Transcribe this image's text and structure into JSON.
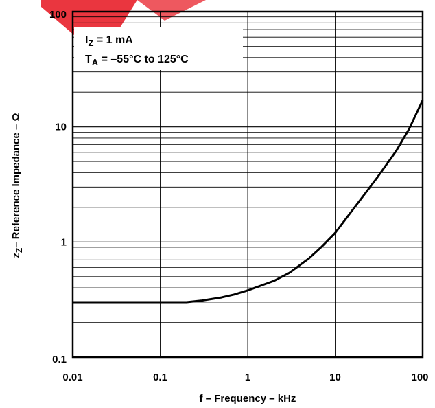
{
  "chart_data": {
    "type": "line",
    "title": "",
    "xlabel": "f – Frequency – kHz",
    "ylabel_main": "z",
    "ylabel_sub": "Z",
    "ylabel_rest": "– Reference Impedance – Ω",
    "x_scale": "log",
    "y_scale": "log",
    "xlim": [
      0.01,
      100
    ],
    "ylim": [
      0.1,
      100
    ],
    "grid": true,
    "x_ticks": [
      0.01,
      0.1,
      1,
      10,
      100
    ],
    "x_tick_labels": [
      "0.01",
      "0.1",
      "1",
      "10",
      "100"
    ],
    "y_ticks": [
      0.1,
      1,
      10,
      100
    ],
    "y_tick_labels": [
      "0.1",
      "1",
      "10",
      "100"
    ],
    "annotation": {
      "line1_main": "I",
      "line1_sub": "Z",
      "line1_rest": " = 1 mA",
      "line2_main": "T",
      "line2_sub": "A",
      "line2_rest": " = –55°C to 125°C"
    },
    "series": [
      {
        "x": [
          0.01,
          0.03,
          0.1,
          0.2,
          0.3,
          0.5,
          0.7,
          1,
          2,
          3,
          5,
          7,
          10,
          20,
          30,
          50,
          70,
          100
        ],
        "y": [
          0.3,
          0.3,
          0.3,
          0.3,
          0.31,
          0.33,
          0.35,
          0.38,
          0.46,
          0.54,
          0.72,
          0.91,
          1.2,
          2.4,
          3.6,
          6.2,
          9.6,
          17
        ]
      }
    ],
    "line_color": "#000000",
    "watermark_color": "#e8202a"
  }
}
